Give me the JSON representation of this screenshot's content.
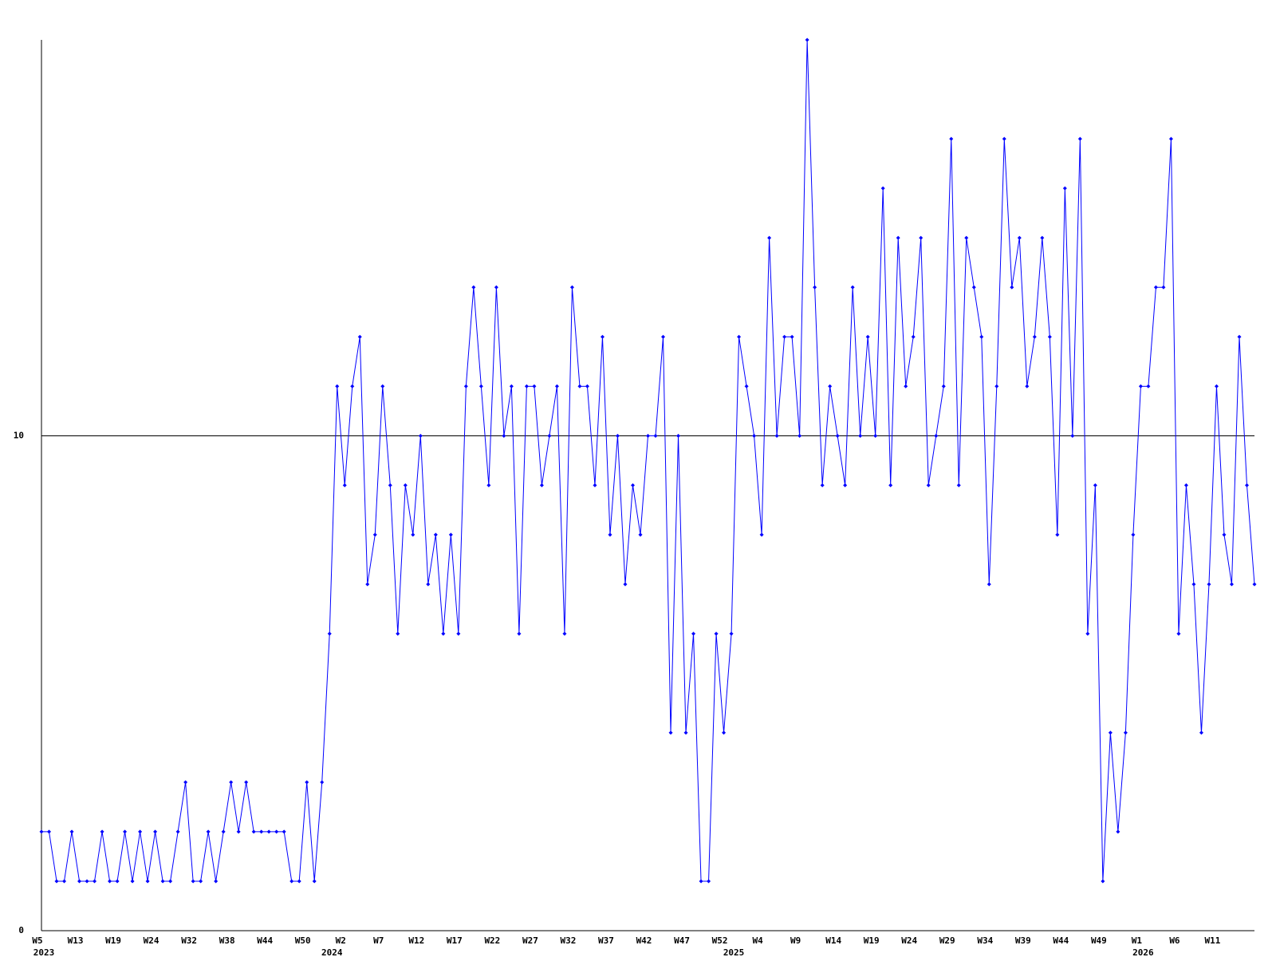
{
  "chart_data": {
    "type": "line",
    "categories": [
      "W5",
      null,
      null,
      null,
      null,
      "W13",
      null,
      null,
      null,
      null,
      "W19",
      null,
      null,
      null,
      null,
      "W24",
      null,
      null,
      null,
      null,
      "W32",
      null,
      null,
      null,
      null,
      "W38",
      null,
      null,
      null,
      null,
      "W44",
      null,
      null,
      null,
      null,
      "W50",
      null,
      null,
      null,
      null,
      "W2",
      null,
      null,
      null,
      null,
      "W7",
      null,
      null,
      null,
      null,
      "W12",
      null,
      null,
      null,
      null,
      "W17",
      null,
      null,
      null,
      null,
      "W22",
      null,
      null,
      null,
      null,
      "W27",
      null,
      null,
      null,
      null,
      "W32",
      null,
      null,
      null,
      null,
      "W37",
      null,
      null,
      null,
      null,
      "W42",
      null,
      null,
      null,
      null,
      "W47",
      null,
      null,
      null,
      null,
      "W52",
      null,
      null,
      null,
      null,
      "W4",
      null,
      null,
      null,
      null,
      "W9",
      null,
      null,
      null,
      null,
      "W14",
      null,
      null,
      null,
      null,
      "W19",
      null,
      null,
      null,
      null,
      "W24",
      null,
      null,
      null,
      null,
      "W29",
      null,
      null,
      null,
      null,
      "W34",
      null,
      null,
      null,
      null,
      "W39",
      null,
      null,
      null,
      null,
      "W44",
      null,
      null,
      null,
      null,
      "W49",
      null,
      null,
      null,
      null,
      "W1",
      null,
      null,
      null,
      null,
      "W6",
      null,
      null,
      null,
      null,
      "W11",
      null,
      null,
      null,
      null,
      null
    ],
    "year_labels": [
      "2023",
      null,
      null,
      null,
      null,
      null,
      null,
      null,
      null,
      null,
      null,
      null,
      null,
      null,
      null,
      null,
      null,
      null,
      null,
      null,
      null,
      null,
      null,
      null,
      null,
      null,
      null,
      null,
      null,
      null,
      null,
      null,
      null,
      null,
      null,
      null,
      null,
      null,
      "2024",
      null,
      null,
      null,
      null,
      null,
      null,
      null,
      null,
      null,
      null,
      null,
      null,
      null,
      null,
      null,
      null,
      null,
      null,
      null,
      null,
      null,
      null,
      null,
      null,
      null,
      null,
      null,
      null,
      null,
      null,
      null,
      null,
      null,
      null,
      null,
      null,
      null,
      null,
      null,
      null,
      null,
      null,
      null,
      null,
      null,
      null,
      null,
      null,
      null,
      null,
      null,
      null,
      "2025",
      null,
      null,
      null,
      null,
      null,
      null,
      null,
      null,
      null,
      null,
      null,
      null,
      null,
      null,
      null,
      null,
      null,
      null,
      null,
      null,
      null,
      null,
      null,
      null,
      null,
      null,
      null,
      null,
      null,
      null,
      null,
      null,
      null,
      null,
      null,
      null,
      null,
      null,
      null,
      null,
      null,
      null,
      null,
      null,
      null,
      null,
      null,
      null,
      null,
      null,
      null,
      null,
      null,
      "2026",
      null,
      null,
      null,
      null,
      null,
      null,
      null,
      null,
      null,
      null,
      null,
      null,
      null,
      null,
      null
    ],
    "values": [
      2,
      2,
      1,
      1,
      2,
      1,
      1,
      1,
      2,
      1,
      1,
      2,
      1,
      2,
      1,
      2,
      1,
      1,
      2,
      3,
      1,
      1,
      2,
      1,
      2,
      3,
      2,
      3,
      2,
      2,
      2,
      2,
      2,
      1,
      1,
      3,
      1,
      3,
      6,
      11,
      9,
      11,
      12,
      7,
      8,
      11,
      9,
      6,
      9,
      8,
      10,
      7,
      8,
      6,
      8,
      6,
      11,
      13,
      11,
      9,
      13,
      10,
      11,
      6,
      11,
      11,
      9,
      10,
      11,
      6,
      13,
      11,
      11,
      9,
      12,
      8,
      10,
      7,
      9,
      8,
      10,
      10,
      12,
      4,
      10,
      4,
      6,
      1,
      1,
      6,
      4,
      6,
      12,
      11,
      10,
      8,
      14,
      10,
      12,
      12,
      10,
      18,
      13,
      9,
      11,
      10,
      9,
      13,
      10,
      12,
      10,
      15,
      9,
      14,
      11,
      12,
      14,
      9,
      10,
      11,
      16,
      9,
      14,
      13,
      12,
      7,
      11,
      16,
      13,
      14,
      11,
      12,
      14,
      12,
      8,
      15,
      10,
      16,
      6,
      9,
      1,
      4,
      2,
      4,
      8,
      11,
      11,
      13,
      13,
      16,
      6,
      9,
      7,
      4,
      7,
      11,
      8,
      7,
      12,
      9,
      7
    ],
    "color": "#0000ff",
    "ylim": [
      0,
      18
    ],
    "yticks": [
      0,
      10
    ],
    "grid": true
  }
}
